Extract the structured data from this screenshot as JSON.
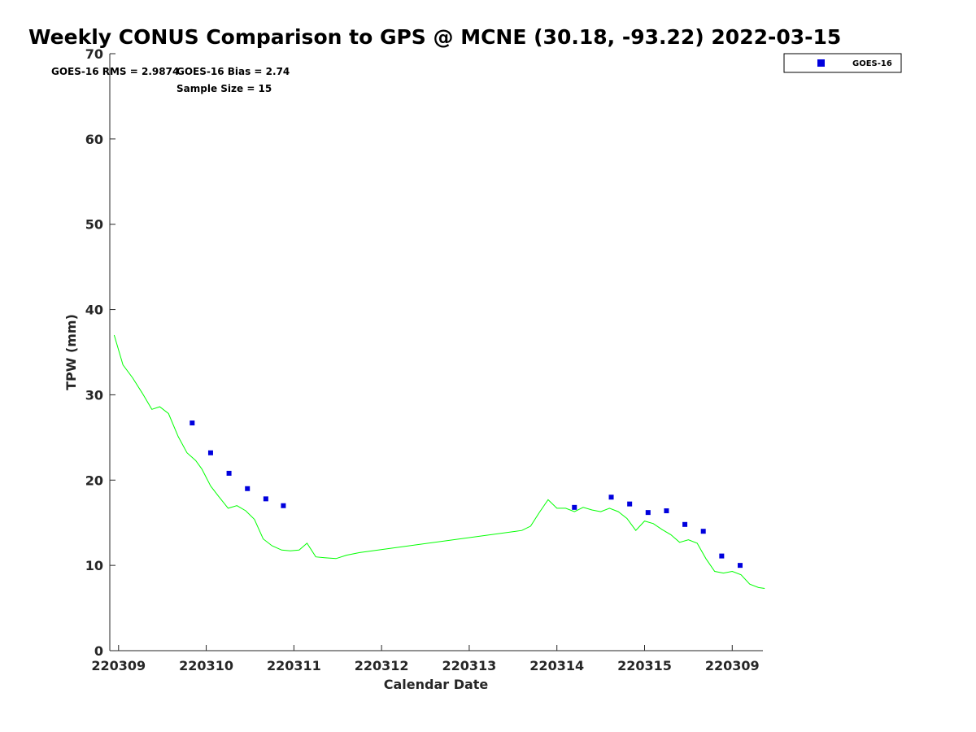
{
  "chart_data": {
    "type": "scatter",
    "title": "Weekly CONUS Comparison to GPS @ MCNE (30.18, -93.22) 2022-03-15",
    "xlabel": "Calendar Date",
    "ylabel": "TPW (mm)",
    "xlim": [
      -0.1,
      7.35
    ],
    "ylim": [
      0,
      70
    ],
    "x_ticks": [
      {
        "value": 0,
        "label": "220309"
      },
      {
        "value": 1,
        "label": "220310"
      },
      {
        "value": 2,
        "label": "220311"
      },
      {
        "value": 3,
        "label": "220312"
      },
      {
        "value": 4,
        "label": "220313"
      },
      {
        "value": 5,
        "label": "220314"
      },
      {
        "value": 6,
        "label": "220315"
      },
      {
        "value": 7,
        "label": "220309"
      }
    ],
    "y_ticks": [
      0,
      10,
      20,
      30,
      40,
      50,
      60,
      70
    ],
    "annotations": {
      "rms": "GOES-16 RMS = 2.9874",
      "bias": "GOES-16 Bias = 2.74",
      "sample": "Sample Size = 15"
    },
    "legend": {
      "position": "top-right",
      "entries": [
        "GOES-16"
      ]
    },
    "series": [
      {
        "name": "GPS",
        "kind": "line",
        "color": "#00ff00",
        "x": [
          -0.05,
          0.05,
          0.16,
          0.27,
          0.38,
          0.47,
          0.57,
          0.68,
          0.78,
          0.88,
          0.95,
          1.05,
          1.14,
          1.25,
          1.35,
          1.45,
          1.55,
          1.65,
          1.75,
          1.86,
          1.96,
          2.06,
          2.15,
          2.25,
          2.35,
          2.48,
          2.6,
          2.75,
          4.6,
          4.7,
          4.8,
          4.9,
          5.0,
          5.1,
          5.2,
          5.3,
          5.4,
          5.5,
          5.6,
          5.7,
          5.8,
          5.9,
          6.0,
          6.1,
          6.2,
          6.3,
          6.4,
          6.5,
          6.6,
          6.7,
          6.8,
          6.9,
          7.0,
          7.1,
          7.2,
          7.3,
          7.37
        ],
        "y": [
          37.0,
          33.5,
          32.0,
          30.2,
          28.3,
          28.6,
          27.8,
          25.1,
          23.2,
          22.3,
          21.3,
          19.3,
          18.1,
          16.7,
          17.0,
          16.4,
          15.4,
          13.1,
          12.3,
          11.8,
          11.7,
          11.8,
          12.6,
          11.0,
          10.9,
          10.8,
          11.2,
          11.5,
          14.1,
          14.6,
          16.2,
          17.7,
          16.7,
          16.7,
          16.3,
          16.8,
          16.5,
          16.3,
          16.7,
          16.3,
          15.5,
          14.1,
          15.2,
          14.9,
          14.2,
          13.6,
          12.7,
          13.0,
          12.6,
          10.8,
          9.3,
          9.1,
          9.3,
          8.9,
          7.8,
          7.4,
          7.3
        ]
      },
      {
        "name": "GOES-16",
        "kind": "scatter",
        "color": "#0000dd",
        "x": [
          0.84,
          1.05,
          1.26,
          1.47,
          1.68,
          1.88,
          5.2,
          5.62,
          5.83,
          6.04,
          6.25,
          6.46,
          6.67,
          6.88,
          7.09
        ],
        "y": [
          26.7,
          23.2,
          20.8,
          19.0,
          17.8,
          17.0,
          16.8,
          18.0,
          17.2,
          16.2,
          16.4,
          14.8,
          14.0,
          11.1,
          10.0
        ]
      }
    ]
  }
}
